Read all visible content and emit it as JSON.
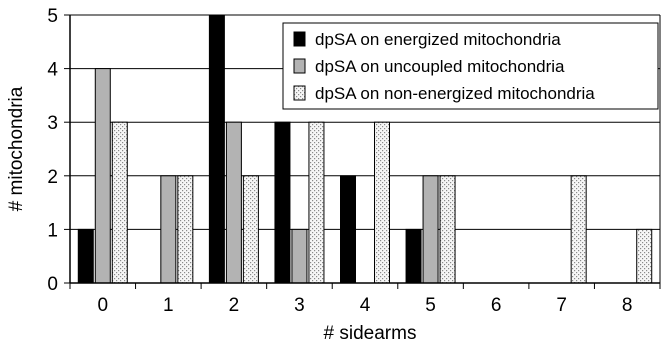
{
  "chart_data": {
    "type": "bar",
    "title": "",
    "xlabel": "# sidearms",
    "ylabel": "# mitochondria",
    "categories": [
      "0",
      "1",
      "2",
      "3",
      "4",
      "5",
      "6",
      "7",
      "8"
    ],
    "ylim": [
      0,
      5
    ],
    "yticks": [
      "0",
      "1",
      "2",
      "3",
      "4",
      "5"
    ],
    "grid": true,
    "legend_position": "top-right",
    "series": [
      {
        "name": "dpSA on energized mitochondria",
        "values": [
          1,
          0,
          5,
          3,
          2,
          1,
          0,
          0,
          0
        ],
        "color": "#000000",
        "pattern": "solid"
      },
      {
        "name": "dpSA on uncoupled mitochondria",
        "values": [
          4,
          2,
          3,
          1,
          0,
          2,
          0,
          0,
          0
        ],
        "color": "#b3b3b3",
        "pattern": "solid"
      },
      {
        "name": "dpSA on non-energized mitochondria",
        "values": [
          3,
          2,
          2,
          3,
          3,
          2,
          0,
          2,
          1
        ],
        "color": "#f4f4f4",
        "pattern": "dotted"
      }
    ]
  }
}
